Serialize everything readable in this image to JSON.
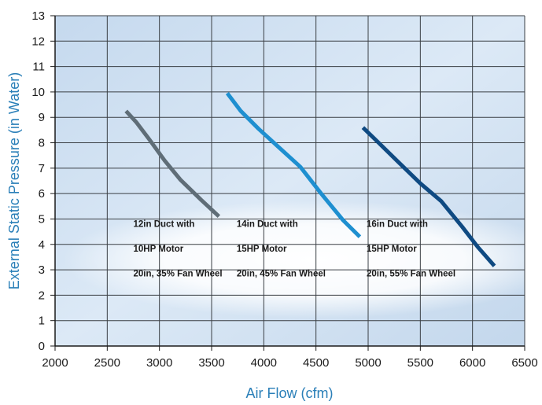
{
  "chart_data": {
    "type": "line",
    "xlabel": "Air Flow (cfm)",
    "ylabel": "External Static Pressure (in Water)",
    "xlim": [
      2000,
      6500
    ],
    "ylim": [
      0,
      13
    ],
    "x_ticks": [
      2000,
      2500,
      3000,
      3500,
      4000,
      4500,
      5000,
      5500,
      6000,
      6500
    ],
    "y_ticks": [
      0,
      1,
      2,
      3,
      4,
      5,
      6,
      7,
      8,
      9,
      10,
      11,
      12,
      13
    ],
    "grid": true,
    "series": [
      {
        "color": "#5f6d77",
        "points": [
          [
            2680,
            9.25
          ],
          [
            2780,
            8.8
          ],
          [
            2900,
            8.15
          ],
          [
            3050,
            7.3
          ],
          [
            3200,
            6.55
          ],
          [
            3400,
            5.75
          ],
          [
            3570,
            5.1
          ]
        ]
      },
      {
        "color": "#1e8fd0",
        "points": [
          [
            3650,
            9.95
          ],
          [
            3780,
            9.25
          ],
          [
            3950,
            8.55
          ],
          [
            4150,
            7.8
          ],
          [
            4350,
            7.05
          ],
          [
            4550,
            6.0
          ],
          [
            4760,
            4.95
          ],
          [
            4920,
            4.3
          ]
        ]
      },
      {
        "color": "#0f4a82",
        "points": [
          [
            4950,
            8.6
          ],
          [
            5100,
            8.0
          ],
          [
            5300,
            7.2
          ],
          [
            5500,
            6.4
          ],
          [
            5700,
            5.7
          ],
          [
            5900,
            4.7
          ],
          [
            6050,
            3.9
          ],
          [
            6210,
            3.15
          ]
        ]
      }
    ],
    "annotations": [
      {
        "lines": [
          "12in Duct with",
          "10HP Motor",
          "20in, 35% Fan Wheel"
        ],
        "x": 2750,
        "y": 4.6
      },
      {
        "lines": [
          "14in Duct with",
          "15HP Motor",
          "20in, 45% Fan Wheel"
        ],
        "x": 3740,
        "y": 4.6
      },
      {
        "lines": [
          "16in Duct with",
          "15HP Motor",
          "20in, 55% Fan Wheel"
        ],
        "x": 4985,
        "y": 4.6
      }
    ]
  }
}
